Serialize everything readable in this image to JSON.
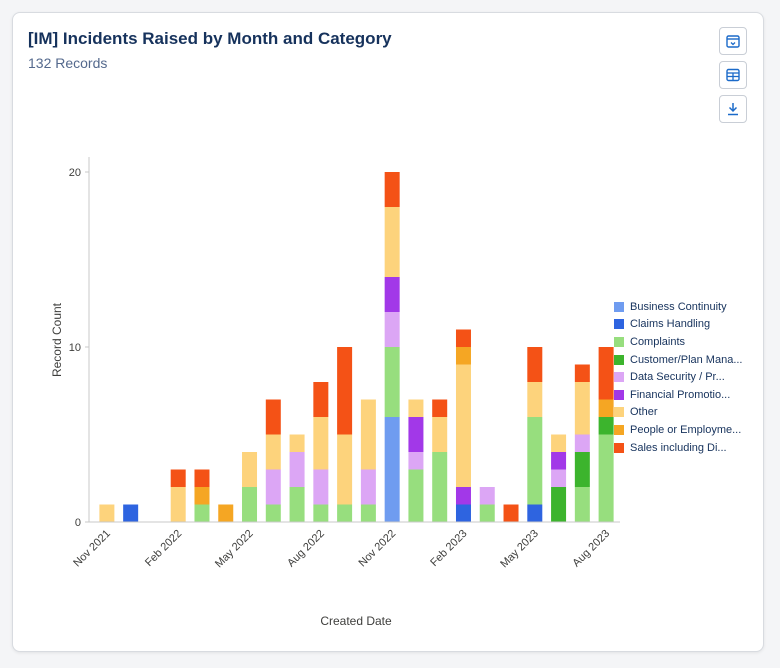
{
  "header": {
    "title": "[IM] Incidents Raised by Month and Category",
    "subtitle": "132 Records"
  },
  "toolbar": {
    "buttons": [
      {
        "icon": "calendar-icon"
      },
      {
        "icon": "table-icon"
      },
      {
        "icon": "download-icon"
      }
    ]
  },
  "colors": {
    "Business Continuity": "#6f9cf0",
    "Claims Handling": "#2e64e0",
    "Complaints": "#97de7e",
    "Customer/Plan Management": "#3cb42d",
    "Data Security / Privacy": "#dca6f5",
    "Financial Promotions": "#a238e8",
    "Other": "#fdd37c",
    "People or Employment": "#f5a623",
    "Sales including Distribution": "#f45216"
  },
  "chart_data": {
    "type": "bar",
    "stacked": true,
    "title": "[IM] Incidents Raised by Month and Category",
    "subtitle": "132 Records",
    "xlabel": "Created Date",
    "ylabel": "Record Count",
    "ylim": [
      0,
      20
    ],
    "yticks": [
      0,
      10,
      20
    ],
    "xtick_labels": [
      "Nov 2021",
      "Feb 2022",
      "May 2022",
      "Aug 2022",
      "Nov 2022",
      "Feb 2023",
      "May 2023",
      "Aug 2023"
    ],
    "categories": [
      "Nov 2021",
      "Dec 2021",
      "Jan 2022",
      "Feb 2022",
      "Mar 2022",
      "Apr 2022",
      "May 2022",
      "Jun 2022",
      "Jul 2022",
      "Aug 2022",
      "Sep 2022",
      "Oct 2022",
      "Nov 2022",
      "Dec 2022",
      "Jan 2023",
      "Feb 2023",
      "Mar 2023",
      "Apr 2023",
      "May 2023",
      "Jun 2023",
      "Jul 2023",
      "Aug 2023"
    ],
    "legend_position": "right",
    "series": [
      {
        "name": "Business Continuity",
        "legend": "Business Continuity",
        "values": [
          0,
          0,
          0,
          0,
          0,
          0,
          0,
          0,
          0,
          0,
          0,
          0,
          6,
          0,
          0,
          0,
          0,
          0,
          0,
          0,
          0,
          0
        ]
      },
      {
        "name": "Claims Handling",
        "legend": "Claims Handling",
        "values": [
          0,
          1,
          0,
          0,
          0,
          0,
          0,
          0,
          0,
          0,
          0,
          0,
          0,
          0,
          0,
          1,
          0,
          0,
          1,
          0,
          0,
          0
        ]
      },
      {
        "name": "Complaints",
        "legend": "Complaints",
        "values": [
          0,
          0,
          0,
          0,
          1,
          0,
          2,
          1,
          2,
          1,
          1,
          1,
          4,
          3,
          4,
          0,
          1,
          0,
          5,
          0,
          2,
          5
        ]
      },
      {
        "name": "Customer/Plan Management",
        "legend": "Customer/Plan Mana...",
        "values": [
          0,
          0,
          0,
          0,
          0,
          0,
          0,
          0,
          0,
          0,
          0,
          0,
          0,
          0,
          0,
          0,
          0,
          0,
          0,
          2,
          2,
          1
        ]
      },
      {
        "name": "Data Security / Privacy",
        "legend": "Data Security / Pr...",
        "values": [
          0,
          0,
          0,
          0,
          0,
          0,
          0,
          2,
          2,
          2,
          0,
          2,
          2,
          1,
          0,
          0,
          1,
          0,
          0,
          1,
          1,
          0
        ]
      },
      {
        "name": "Financial Promotions",
        "legend": "Financial Promotio...",
        "values": [
          0,
          0,
          0,
          0,
          0,
          0,
          0,
          0,
          0,
          0,
          0,
          0,
          2,
          2,
          0,
          1,
          0,
          0,
          0,
          1,
          0,
          0
        ]
      },
      {
        "name": "Other",
        "legend": "Other",
        "values": [
          1,
          0,
          0,
          2,
          0,
          0,
          2,
          2,
          1,
          3,
          4,
          4,
          4,
          1,
          2,
          7,
          0,
          0,
          2,
          1,
          3,
          0
        ]
      },
      {
        "name": "People or Employment",
        "legend": "People or Employme...",
        "values": [
          0,
          0,
          0,
          0,
          1,
          1,
          0,
          0,
          0,
          0,
          0,
          0,
          0,
          0,
          0,
          1,
          0,
          0,
          0,
          0,
          0,
          1
        ]
      },
      {
        "name": "Sales including Distribution",
        "legend": "Sales including Di...",
        "values": [
          0,
          0,
          0,
          1,
          1,
          0,
          0,
          2,
          0,
          2,
          5,
          0,
          2,
          0,
          1,
          1,
          0,
          1,
          2,
          0,
          1,
          3
        ]
      }
    ]
  }
}
